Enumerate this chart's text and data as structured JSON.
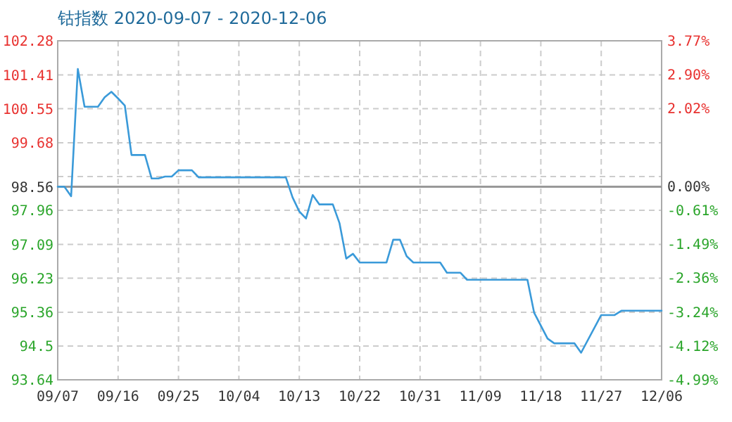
{
  "chart_data": {
    "type": "line",
    "title": "钴指数 2020-09-07 - 2020-12-06",
    "x": [
      "2020-09-07",
      "2020-09-08",
      "2020-09-09",
      "2020-09-10",
      "2020-09-11",
      "2020-09-13",
      "2020-09-14",
      "2020-09-15",
      "2020-09-16",
      "2020-09-17",
      "2020-09-18",
      "2020-09-20",
      "2020-09-21",
      "2020-09-22",
      "2020-09-23",
      "2020-09-24",
      "2020-09-25",
      "2020-09-27",
      "2020-09-28",
      "2020-10-11",
      "2020-10-12",
      "2020-10-13",
      "2020-10-14",
      "2020-10-15",
      "2020-10-16",
      "2020-10-18",
      "2020-10-19",
      "2020-10-20",
      "2020-10-21",
      "2020-10-22",
      "2020-10-26",
      "2020-10-27",
      "2020-10-28",
      "2020-10-29",
      "2020-10-30",
      "2020-11-03",
      "2020-11-04",
      "2020-11-06",
      "2020-11-07",
      "2020-11-16",
      "2020-11-17",
      "2020-11-19",
      "2020-11-20",
      "2020-11-23",
      "2020-11-24",
      "2020-11-27",
      "2020-11-29",
      "2020-11-30",
      "2020-12-06"
    ],
    "series": [
      {
        "color": "#3a9ad9",
        "values": [
          98.56,
          98.56,
          98.32,
          101.56,
          100.6,
          100.6,
          100.84,
          100.98,
          100.81,
          100.63,
          99.37,
          99.37,
          98.77,
          98.77,
          98.82,
          98.82,
          98.98,
          98.98,
          98.8,
          98.8,
          98.29,
          97.93,
          97.75,
          98.35,
          98.11,
          98.11,
          97.63,
          96.73,
          96.85,
          96.63,
          96.63,
          97.21,
          97.21,
          96.79,
          96.63,
          96.63,
          96.37,
          96.37,
          96.19,
          96.19,
          95.35,
          94.69,
          94.57,
          94.57,
          94.33,
          95.29,
          95.29,
          95.4,
          95.4
        ]
      }
    ],
    "xlim": [
      "2020-09-07",
      "2020-12-06"
    ],
    "xticks": [
      {
        "value": "2020-09-07",
        "label": "09/07"
      },
      {
        "value": "2020-09-16",
        "label": "09/16"
      },
      {
        "value": "2020-09-25",
        "label": "09/25"
      },
      {
        "value": "2020-10-04",
        "label": "10/04"
      },
      {
        "value": "2020-10-13",
        "label": "10/13"
      },
      {
        "value": "2020-10-22",
        "label": "10/22"
      },
      {
        "value": "2020-10-31",
        "label": "10/31"
      },
      {
        "value": "2020-11-09",
        "label": "11/09"
      },
      {
        "value": "2020-11-18",
        "label": "11/18"
      },
      {
        "value": "2020-11-27",
        "label": "11/27"
      },
      {
        "value": "2020-12-06",
        "label": "12/06"
      }
    ],
    "ylim": [
      93.64,
      102.28
    ],
    "yticks": [
      93.64,
      94.5,
      95.36,
      96.23,
      97.09,
      97.96,
      98.56,
      {
        "value": 98.82,
        "label": null
      },
      99.68,
      100.55,
      101.41,
      102.28
    ],
    "y2lim": [
      -4.99,
      3.77
    ],
    "y2ticks": [
      {
        "value": -4.99,
        "label": "-4.99%"
      },
      {
        "value": -4.12,
        "label": "-4.12%"
      },
      {
        "value": -3.24,
        "label": "-3.24%"
      },
      {
        "value": -2.36,
        "label": "-2.36%"
      },
      {
        "value": -1.49,
        "label": "-1.49%"
      },
      {
        "value": -0.61,
        "label": "-0.61%"
      },
      {
        "value": 0,
        "label": "0.00%"
      },
      {
        "value": 2.02,
        "label": "2.02%"
      },
      {
        "value": 2.9,
        "label": "2.90%"
      },
      {
        "value": 3.77,
        "label": "3.77%"
      }
    ],
    "ref_lines": [
      {
        "axis": "y",
        "value": 98.56,
        "color": "#999999"
      }
    ],
    "grid": true,
    "marker": "none",
    "line_style": "solid"
  }
}
